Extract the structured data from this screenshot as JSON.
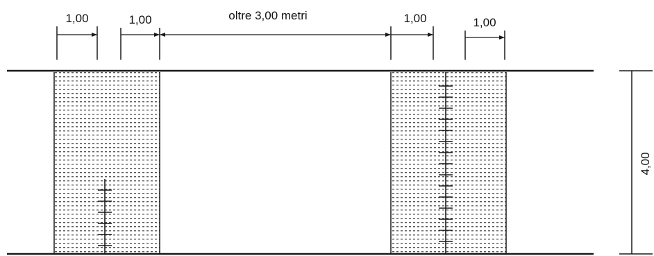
{
  "dimensions": {
    "left_outer_width": "1,00",
    "left_inner_width": "1,00",
    "center_width": "oltre 3,00 metri",
    "right_inner_width": "1,00",
    "right_outer_width": "1,00",
    "height": "4,00"
  },
  "colors": {
    "line": "#1a1a1a",
    "band_dots": "#555555",
    "background": "#ffffff"
  }
}
